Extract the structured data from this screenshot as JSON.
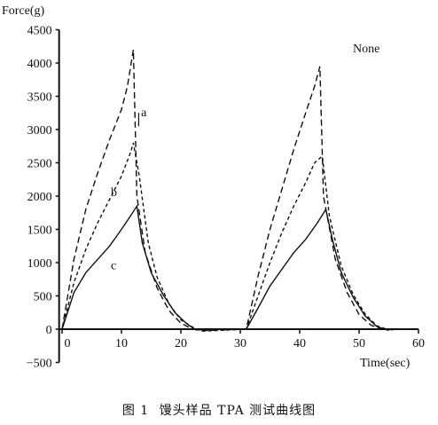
{
  "chart_data": {
    "type": "line",
    "ylabel": "Force(g)",
    "xlabel": "Time(sec)",
    "annotation": "None",
    "xlim": [
      0,
      60
    ],
    "ylim": [
      -500,
      4500
    ],
    "x_ticks": [
      0,
      10,
      20,
      30,
      40,
      50,
      60
    ],
    "y_ticks": [
      -500,
      0,
      500,
      1000,
      1500,
      2000,
      2500,
      3000,
      3500,
      4000,
      4500
    ],
    "series": [
      {
        "name": "a",
        "dash": "7,4",
        "points": [
          [
            0,
            0
          ],
          [
            2,
            1050
          ],
          [
            4,
            1800
          ],
          [
            6,
            2350
          ],
          [
            8,
            2850
          ],
          [
            10,
            3300
          ],
          [
            11,
            3650
          ],
          [
            12,
            4200
          ],
          [
            12.6,
            2000
          ],
          [
            14,
            1150
          ],
          [
            16,
            620
          ],
          [
            18,
            280
          ],
          [
            20,
            90
          ],
          [
            22,
            0
          ],
          [
            24,
            -20
          ],
          [
            31,
            0
          ],
          [
            33,
            800
          ],
          [
            35,
            1500
          ],
          [
            37,
            2100
          ],
          [
            39,
            2700
          ],
          [
            41,
            3250
          ],
          [
            42.5,
            3650
          ],
          [
            43.4,
            3950
          ],
          [
            44,
            2000
          ],
          [
            46,
            1050
          ],
          [
            48,
            550
          ],
          [
            50,
            220
          ],
          [
            52,
            60
          ],
          [
            54,
            0
          ],
          [
            56,
            -10
          ]
        ]
      },
      {
        "name": "b",
        "dash": "4,3",
        "points": [
          [
            0,
            0
          ],
          [
            2,
            700
          ],
          [
            4,
            1200
          ],
          [
            6,
            1600
          ],
          [
            8,
            1950
          ],
          [
            10,
            2300
          ],
          [
            11.5,
            2650
          ],
          [
            12,
            2800
          ],
          [
            13,
            2300
          ],
          [
            14.5,
            1300
          ],
          [
            16,
            780
          ],
          [
            18,
            380
          ],
          [
            20,
            140
          ],
          [
            22,
            30
          ],
          [
            23.5,
            -30
          ],
          [
            31,
            0
          ],
          [
            33,
            500
          ],
          [
            35,
            1000
          ],
          [
            37,
            1450
          ],
          [
            39,
            1850
          ],
          [
            41,
            2200
          ],
          [
            42.5,
            2500
          ],
          [
            43.8,
            2600
          ],
          [
            45,
            1700
          ],
          [
            47,
            950
          ],
          [
            49,
            520
          ],
          [
            51,
            230
          ],
          [
            53,
            50
          ],
          [
            55,
            -10
          ]
        ]
      },
      {
        "name": "c",
        "dash": "",
        "points": [
          [
            0,
            0
          ],
          [
            2,
            550
          ],
          [
            4,
            850
          ],
          [
            6,
            1050
          ],
          [
            8,
            1250
          ],
          [
            10,
            1500
          ],
          [
            11.5,
            1700
          ],
          [
            12.6,
            1850
          ],
          [
            13.5,
            1300
          ],
          [
            15,
            850
          ],
          [
            17,
            520
          ],
          [
            19,
            250
          ],
          [
            21,
            80
          ],
          [
            22.5,
            -10
          ],
          [
            31,
            0
          ],
          [
            33,
            320
          ],
          [
            35,
            650
          ],
          [
            37,
            900
          ],
          [
            39,
            1150
          ],
          [
            41,
            1350
          ],
          [
            43,
            1600
          ],
          [
            44.4,
            1800
          ],
          [
            45.5,
            1350
          ],
          [
            47,
            850
          ],
          [
            49,
            480
          ],
          [
            51,
            200
          ],
          [
            53,
            40
          ],
          [
            55,
            -20
          ]
        ]
      }
    ],
    "series_labels": [
      {
        "text": "a",
        "x": 13.3,
        "y": 3200
      },
      {
        "text": "b",
        "x": 8.2,
        "y": 2000
      },
      {
        "text": "c",
        "x": 8.2,
        "y": 900
      }
    ]
  },
  "caption": {
    "figure_label": "图 1",
    "title": "馒头样品 TPA 测试曲线图"
  }
}
